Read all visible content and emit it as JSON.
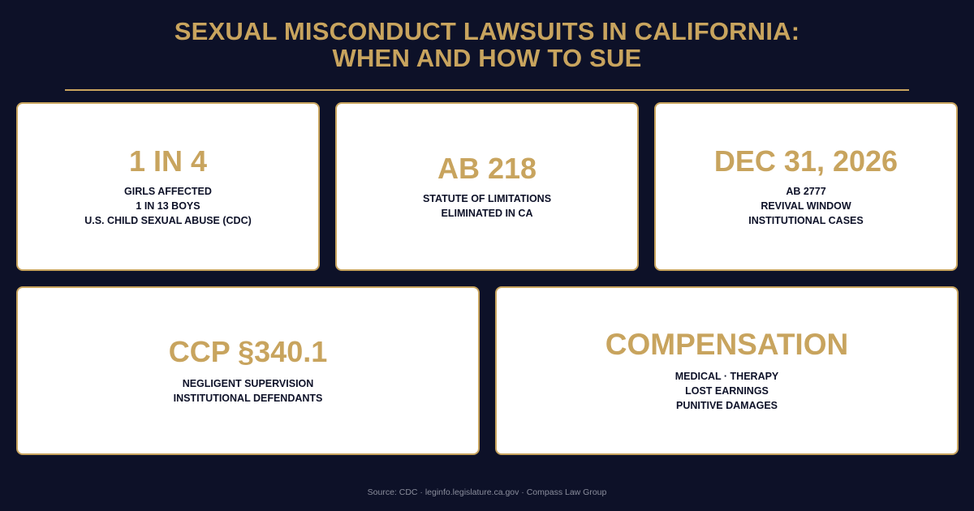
{
  "title": {
    "line1": "SEXUAL MISCONDUCT LAWSUITS IN CALIFORNIA:",
    "line2": "WHEN AND HOW TO SUE"
  },
  "colors": {
    "background": "#0d1128",
    "accent_gold": "#c8a45e",
    "card_background": "#ffffff",
    "card_text": "#0d1128"
  },
  "cards": [
    {
      "headline": "1 IN 4",
      "lines": [
        "GIRLS AFFECTED",
        "1 IN 13 BOYS",
        "U.S. CHILD SEXUAL ABUSE (CDC)"
      ]
    },
    {
      "headline": "AB 218",
      "lines": [
        "STATUTE OF LIMITATIONS",
        "ELIMINATED IN CA"
      ]
    },
    {
      "headline": "DEC 31, 2026",
      "lines": [
        "AB 2777",
        "REVIVAL WINDOW",
        "INSTITUTIONAL CASES"
      ]
    },
    {
      "headline": "CCP §340.1",
      "lines": [
        "NEGLIGENT SUPERVISION",
        "INSTITUTIONAL DEFENDANTS"
      ]
    },
    {
      "headline": "COMPENSATION",
      "lines": [
        "MEDICAL · THERAPY",
        "LOST EARNINGS",
        "PUNITIVE DAMAGES"
      ]
    }
  ],
  "source": "Source: CDC · leginfo.legislature.ca.gov · Compass Law Group"
}
